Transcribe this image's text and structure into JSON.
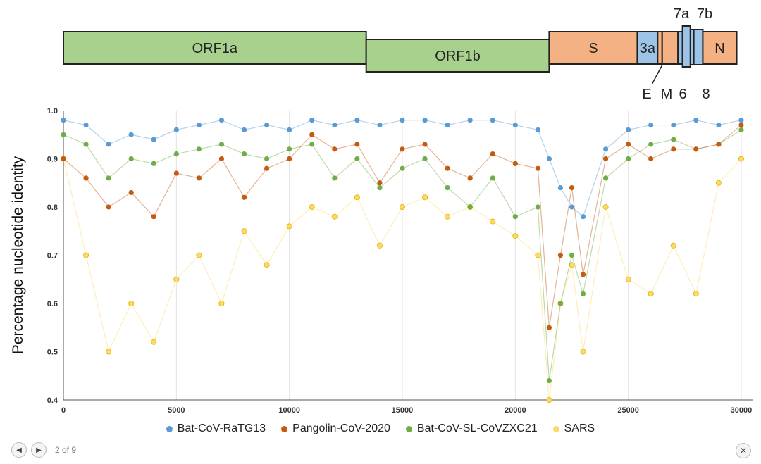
{
  "genome_map": {
    "genes": [
      {
        "name": "ORF1a",
        "start": 0,
        "end": 13400,
        "row": "top",
        "color": "#a9d18e"
      },
      {
        "name": "ORF1b",
        "start": 13400,
        "end": 21500,
        "row": "low",
        "color": "#a9d18e"
      },
      {
        "name": "S",
        "start": 21500,
        "end": 25400,
        "row": "top",
        "color": "#f4b183"
      },
      {
        "name": "3a",
        "start": 25400,
        "end": 26300,
        "row": "top",
        "color": "#9dc3e6"
      },
      {
        "name": "",
        "start": 26300,
        "end": 26500,
        "row": "top",
        "color": "#f4b183"
      },
      {
        "name": "",
        "start": 26500,
        "end": 27200,
        "row": "top",
        "color": "#f4b183"
      },
      {
        "name": "",
        "start": 27200,
        "end": 27400,
        "row": "top",
        "color": "#9dc3e6"
      },
      {
        "name": "",
        "start": 27400,
        "end": 27750,
        "row": "tall",
        "color": "#9dc3e6"
      },
      {
        "name": "",
        "start": 27750,
        "end": 27900,
        "row": "mid",
        "color": "#9dc3e6"
      },
      {
        "name": "",
        "start": 27900,
        "end": 28300,
        "row": "mid",
        "color": "#9dc3e6"
      },
      {
        "name": "N",
        "start": 28300,
        "end": 29800,
        "row": "top",
        "color": "#f4b183"
      }
    ],
    "labels_above": [
      "7a",
      "7b"
    ],
    "labels_below": [
      "E",
      "M",
      "6",
      "8"
    ]
  },
  "chart_data": {
    "type": "scatter",
    "xlabel": "",
    "ylabel": "Percentage nucleotide identity",
    "xlim": [
      0,
      30500
    ],
    "ylim": [
      0.4,
      1.0
    ],
    "x_ticks": [
      "0",
      "5000",
      "10000",
      "15000",
      "20000",
      "25000",
      "30000"
    ],
    "y_ticks": [
      "0.4",
      "0.5",
      "0.6",
      "0.7",
      "0.8",
      "0.9",
      "1.0"
    ],
    "grid": "vertical",
    "legend_position": "bottom",
    "series": [
      {
        "name": "Bat-CoV-RaTG13",
        "color": "#5b9bd5",
        "x": [
          0,
          1000,
          2000,
          3000,
          4000,
          5000,
          6000,
          7000,
          8000,
          9000,
          10000,
          11000,
          12000,
          13000,
          14000,
          15000,
          16000,
          17000,
          18000,
          19000,
          20000,
          21000,
          21500,
          22000,
          22500,
          23000,
          24000,
          25000,
          26000,
          27000,
          28000,
          29000,
          30000
        ],
        "y": [
          0.98,
          0.97,
          0.93,
          0.95,
          0.94,
          0.96,
          0.97,
          0.98,
          0.96,
          0.97,
          0.96,
          0.98,
          0.97,
          0.98,
          0.97,
          0.98,
          0.98,
          0.97,
          0.98,
          0.98,
          0.97,
          0.96,
          0.9,
          0.84,
          0.8,
          0.78,
          0.92,
          0.96,
          0.97,
          0.97,
          0.98,
          0.97,
          0.98
        ]
      },
      {
        "name": "Pangolin-CoV-2020",
        "color": "#c55a11",
        "x": [
          0,
          1000,
          2000,
          3000,
          4000,
          5000,
          6000,
          7000,
          8000,
          9000,
          10000,
          11000,
          12000,
          13000,
          14000,
          15000,
          16000,
          17000,
          18000,
          19000,
          20000,
          21000,
          21500,
          22000,
          22500,
          23000,
          24000,
          25000,
          26000,
          27000,
          28000,
          29000,
          30000
        ],
        "y": [
          0.9,
          0.86,
          0.8,
          0.83,
          0.78,
          0.87,
          0.86,
          0.9,
          0.82,
          0.88,
          0.9,
          0.95,
          0.92,
          0.93,
          0.85,
          0.92,
          0.93,
          0.88,
          0.86,
          0.91,
          0.89,
          0.88,
          0.55,
          0.7,
          0.84,
          0.66,
          0.9,
          0.93,
          0.9,
          0.92,
          0.92,
          0.93,
          0.97
        ]
      },
      {
        "name": "Bat-CoV-SL-CoVZXC21",
        "color": "#70ad47",
        "x": [
          0,
          1000,
          2000,
          3000,
          4000,
          5000,
          6000,
          7000,
          8000,
          9000,
          10000,
          11000,
          12000,
          13000,
          14000,
          15000,
          16000,
          17000,
          18000,
          19000,
          20000,
          21000,
          21500,
          22000,
          22500,
          23000,
          24000,
          25000,
          26000,
          27000,
          28000,
          29000,
          30000
        ],
        "y": [
          0.95,
          0.93,
          0.86,
          0.9,
          0.89,
          0.91,
          0.92,
          0.93,
          0.91,
          0.9,
          0.92,
          0.93,
          0.86,
          0.9,
          0.84,
          0.88,
          0.9,
          0.84,
          0.8,
          0.86,
          0.78,
          0.8,
          0.44,
          0.6,
          0.7,
          0.62,
          0.86,
          0.9,
          0.93,
          0.94,
          0.92,
          0.93,
          0.96
        ]
      },
      {
        "name": "SARS",
        "color": "#ffd966",
        "x": [
          0,
          1000,
          2000,
          3000,
          4000,
          5000,
          6000,
          7000,
          8000,
          9000,
          10000,
          11000,
          12000,
          13000,
          14000,
          15000,
          16000,
          17000,
          18000,
          19000,
          20000,
          21000,
          21500,
          22000,
          22500,
          23000,
          24000,
          25000,
          26000,
          27000,
          28000,
          29000,
          30000
        ],
        "y": [
          0.9,
          0.7,
          0.5,
          0.6,
          0.52,
          0.65,
          0.7,
          0.6,
          0.75,
          0.68,
          0.76,
          0.8,
          0.78,
          0.82,
          0.72,
          0.8,
          0.82,
          0.78,
          0.8,
          0.77,
          0.74,
          0.7,
          0.4,
          0.6,
          0.68,
          0.5,
          0.8,
          0.65,
          0.62,
          0.72,
          0.62,
          0.85,
          0.9
        ]
      }
    ]
  },
  "viewer": {
    "prev_icon": "◀",
    "next_icon": "▶",
    "pager": "2 of 9",
    "close_icon": "✕"
  }
}
